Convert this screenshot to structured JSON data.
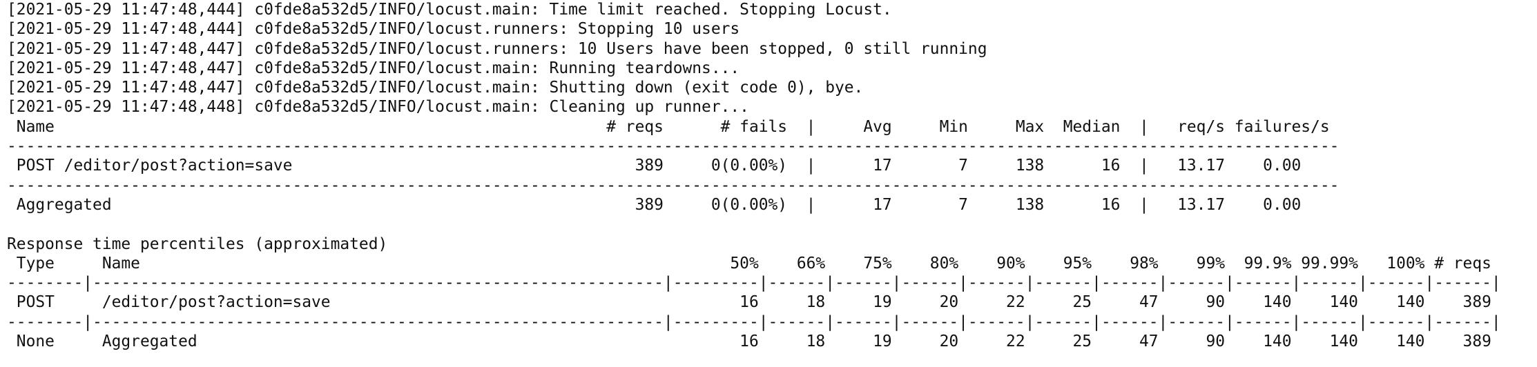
{
  "terminal": {
    "lines": [
      "[2021-05-29 11:47:48,444] c0fde8a532d5/INFO/locust.main: Time limit reached. Stopping Locust.",
      "[2021-05-29 11:47:48,444] c0fde8a532d5/INFO/locust.runners: Stopping 10 users",
      "[2021-05-29 11:47:48,447] c0fde8a532d5/INFO/locust.runners: 10 Users have been stopped, 0 still running",
      "[2021-05-29 11:47:48,447] c0fde8a532d5/INFO/locust.main: Running teardowns...",
      "[2021-05-29 11:47:48,447] c0fde8a532d5/INFO/locust.main: Shutting down (exit code 0), bye.",
      "[2021-05-29 11:47:48,448] c0fde8a532d5/INFO/locust.main: Cleaning up runner...",
      " Name                                                          # reqs      # fails  |     Avg     Min     Max  Median  |   req/s failures/s",
      "--------------------------------------------------------------------------------------------------------------------------------------------",
      " POST /editor/post?action=save                                    389     0(0.00%)  |      17       7     138      16  |   13.17    0.00",
      "--------------------------------------------------------------------------------------------------------------------------------------------",
      " Aggregated                                                       389     0(0.00%)  |      17       7     138      16  |   13.17    0.00",
      "",
      "Response time percentiles (approximated)",
      " Type     Name                                                              50%    66%    75%    80%    90%    95%    98%    99%  99.9% 99.99%   100% # reqs",
      "--------|------------------------------------------------------------|---------|------|------|------|------|------|------|------|------|------|------|------|",
      " POST     /editor/post?action=save                                           16     18     19     20     22     25     47     90    140    140    140    389",
      "--------|------------------------------------------------------------|---------|------|------|------|------|------|------|------|------|------|------|------|",
      " None     Aggregated                                                         16     18     19     20     22     25     47     90    140    140    140    389"
    ]
  }
}
